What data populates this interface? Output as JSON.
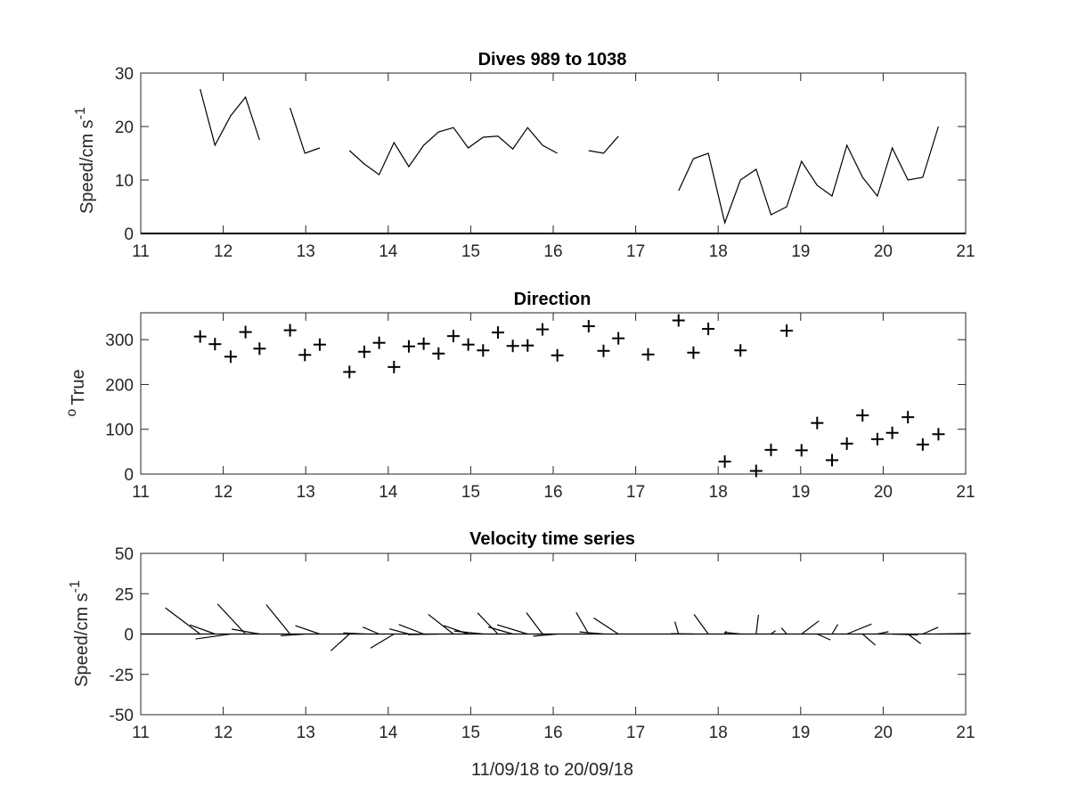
{
  "chart_data": [
    {
      "type": "line",
      "title": "Dives 989 to 1038",
      "xlabel": "",
      "ylabel": "Speed/cm s",
      "ylabel_superscript": "-1",
      "xlim": [
        11,
        21
      ],
      "ylim": [
        0,
        30
      ],
      "xticks": [
        11,
        12,
        13,
        14,
        15,
        16,
        17,
        18,
        19,
        20,
        21
      ],
      "yticks": [
        0,
        10,
        20,
        30
      ],
      "grid": false,
      "color": "#000000",
      "segments": [
        {
          "x": [
            11.72,
            11.9,
            12.09,
            12.27,
            12.44
          ],
          "y": [
            27,
            16.5,
            22.0,
            25.5,
            17.5
          ]
        },
        {
          "x": [
            12.81,
            12.99,
            13.17
          ],
          "y": [
            23.5,
            15.0,
            16.0
          ]
        },
        {
          "x": [
            13.53,
            13.71,
            13.89,
            14.07,
            14.25,
            14.43,
            14.61,
            14.79,
            14.97,
            15.15,
            15.33,
            15.51,
            15.69,
            15.87,
            16.05
          ],
          "y": [
            15.5,
            13.0,
            11.0,
            17.0,
            12.5,
            16.5,
            19.0,
            19.8,
            16.0,
            18.0,
            18.2,
            15.8,
            19.8,
            16.5,
            15.0
          ]
        },
        {
          "x": [
            16.43,
            16.61,
            16.79
          ],
          "y": [
            15.5,
            15.0,
            18.2
          ]
        },
        {
          "x": [
            17.52,
            17.7,
            17.88,
            18.08,
            18.27,
            18.46,
            18.64,
            18.83,
            19.01,
            19.2,
            19.38,
            19.56,
            19.75,
            19.93,
            20.11,
            20.3,
            20.48,
            20.67
          ],
          "y": [
            8.0,
            14.0,
            15.0,
            2.0,
            10.0,
            12.0,
            3.5,
            5.0,
            13.5,
            9.0,
            7.0,
            16.5,
            10.5,
            7.0,
            16.0,
            10.0,
            10.5,
            20.0
          ]
        }
      ]
    },
    {
      "type": "scatter",
      "title": "Direction",
      "xlabel": "",
      "ylabel": "True",
      "ylabel_prefix": "o",
      "xlim": [
        11,
        21
      ],
      "ylim": [
        0,
        360
      ],
      "xticks": [
        11,
        12,
        13,
        14,
        15,
        16,
        17,
        18,
        19,
        20,
        21
      ],
      "yticks": [
        0,
        100,
        200,
        300
      ],
      "grid": false,
      "marker": "+",
      "color": "#000000",
      "x": [
        11.72,
        11.9,
        12.09,
        12.27,
        12.44,
        12.81,
        12.99,
        13.17,
        13.53,
        13.71,
        13.89,
        14.07,
        14.25,
        14.43,
        14.61,
        14.79,
        14.97,
        15.15,
        15.33,
        15.51,
        15.69,
        15.87,
        16.05,
        16.43,
        16.61,
        16.79,
        17.15,
        17.52,
        17.7,
        17.88,
        18.08,
        18.27,
        18.46,
        18.64,
        18.83,
        19.01,
        19.2,
        19.38,
        19.56,
        19.75,
        19.93,
        20.11,
        20.3,
        20.48,
        20.67
      ],
      "y": [
        307,
        290,
        262,
        317,
        280,
        321,
        266,
        289,
        228,
        273,
        293,
        239,
        285,
        291,
        269,
        308,
        289,
        276,
        316,
        286,
        287,
        323,
        265,
        330,
        275,
        303,
        267,
        343,
        271,
        324,
        28,
        276,
        7,
        54,
        320,
        53,
        114,
        31,
        68,
        131,
        78,
        92,
        127,
        66,
        89
      ]
    },
    {
      "type": "quiver",
      "title": "Velocity time series",
      "xlabel": "11/09/18 to 20/09/18",
      "ylabel": "Speed/cm s",
      "ylabel_superscript": "-1",
      "xlim": [
        11,
        21
      ],
      "ylim": [
        -50,
        50
      ],
      "xticks": [
        11,
        12,
        13,
        14,
        15,
        16,
        17,
        18,
        19,
        20,
        21
      ],
      "yticks": [
        -50,
        -25,
        0,
        25,
        50
      ],
      "grid": false,
      "color": "#000000",
      "baseline": 0,
      "x": [
        11.72,
        11.9,
        12.09,
        12.27,
        12.44,
        12.81,
        12.99,
        13.17,
        13.53,
        13.71,
        13.89,
        14.07,
        14.25,
        14.43,
        14.61,
        14.79,
        14.97,
        15.15,
        15.33,
        15.51,
        15.69,
        15.87,
        16.05,
        16.43,
        16.61,
        16.79,
        17.52,
        17.7,
        17.88,
        18.08,
        18.27,
        18.46,
        18.64,
        18.83,
        19.01,
        19.2,
        19.38,
        19.56,
        19.75,
        19.93,
        20.11,
        20.3,
        20.48,
        20.67
      ],
      "speed": [
        27,
        16.5,
        22,
        25.5,
        17.5,
        23.5,
        15,
        16,
        15.5,
        13,
        11,
        17,
        12.5,
        16.5,
        19,
        19.8,
        16,
        18,
        18.2,
        15.8,
        19.8,
        16.5,
        15,
        15.5,
        15,
        18.2,
        8,
        14,
        15,
        2,
        10,
        12,
        3.5,
        5,
        13.5,
        9,
        7,
        16.5,
        10.5,
        7,
        16,
        10,
        10.5,
        20
      ],
      "direction": [
        307,
        290,
        262,
        317,
        280,
        321,
        266,
        289,
        228,
        273,
        293,
        239,
        285,
        291,
        269,
        308,
        289,
        276,
        316,
        286,
        287,
        323,
        265,
        330,
        275,
        303,
        343,
        271,
        324,
        28,
        276,
        7,
        54,
        320,
        53,
        114,
        31,
        68,
        131,
        78,
        92,
        127,
        66,
        89
      ]
    }
  ]
}
